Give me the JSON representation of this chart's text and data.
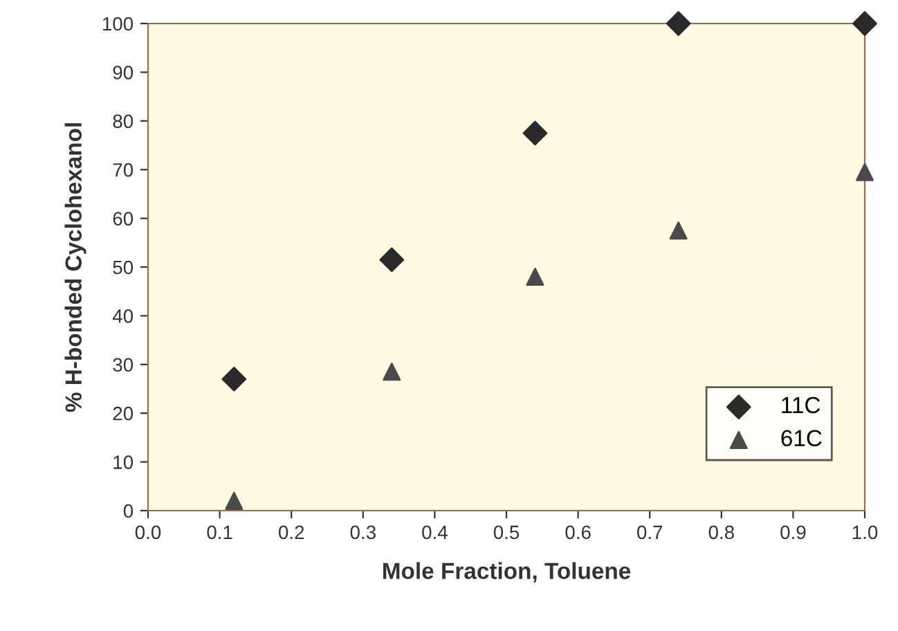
{
  "chart_data": {
    "type": "scatter",
    "xlabel": "Mole Fraction, Toluene",
    "ylabel": "% H-bonded Cyclohexanol",
    "xlim": [
      0,
      1
    ],
    "ylim": [
      0,
      100
    ],
    "xticks": [
      {
        "value": 0,
        "label": "0.0"
      },
      0.1,
      0.2,
      0.3,
      0.4,
      0.5,
      0.6,
      0.7,
      0.8,
      0.9,
      {
        "value": 1,
        "label": "1.0"
      }
    ],
    "yticks": [
      0,
      10,
      20,
      30,
      40,
      50,
      60,
      70,
      80,
      90,
      100
    ],
    "grid": false,
    "legend": "bottom right",
    "series": [
      {
        "name": "11C",
        "color": "#2a2a2a",
        "marker": "diamond",
        "x": [
          0.12,
          0.34,
          0.54,
          0.74,
          1.0
        ],
        "values": [
          27,
          51.5,
          77.5,
          100,
          100
        ]
      },
      {
        "name": "61C",
        "color": "#4a4a4a",
        "marker": "triangle",
        "x": [
          0.12,
          0.34,
          0.54,
          0.74,
          1.0
        ],
        "values": [
          2,
          28.5,
          48,
          57.5,
          69.5
        ]
      }
    ]
  }
}
